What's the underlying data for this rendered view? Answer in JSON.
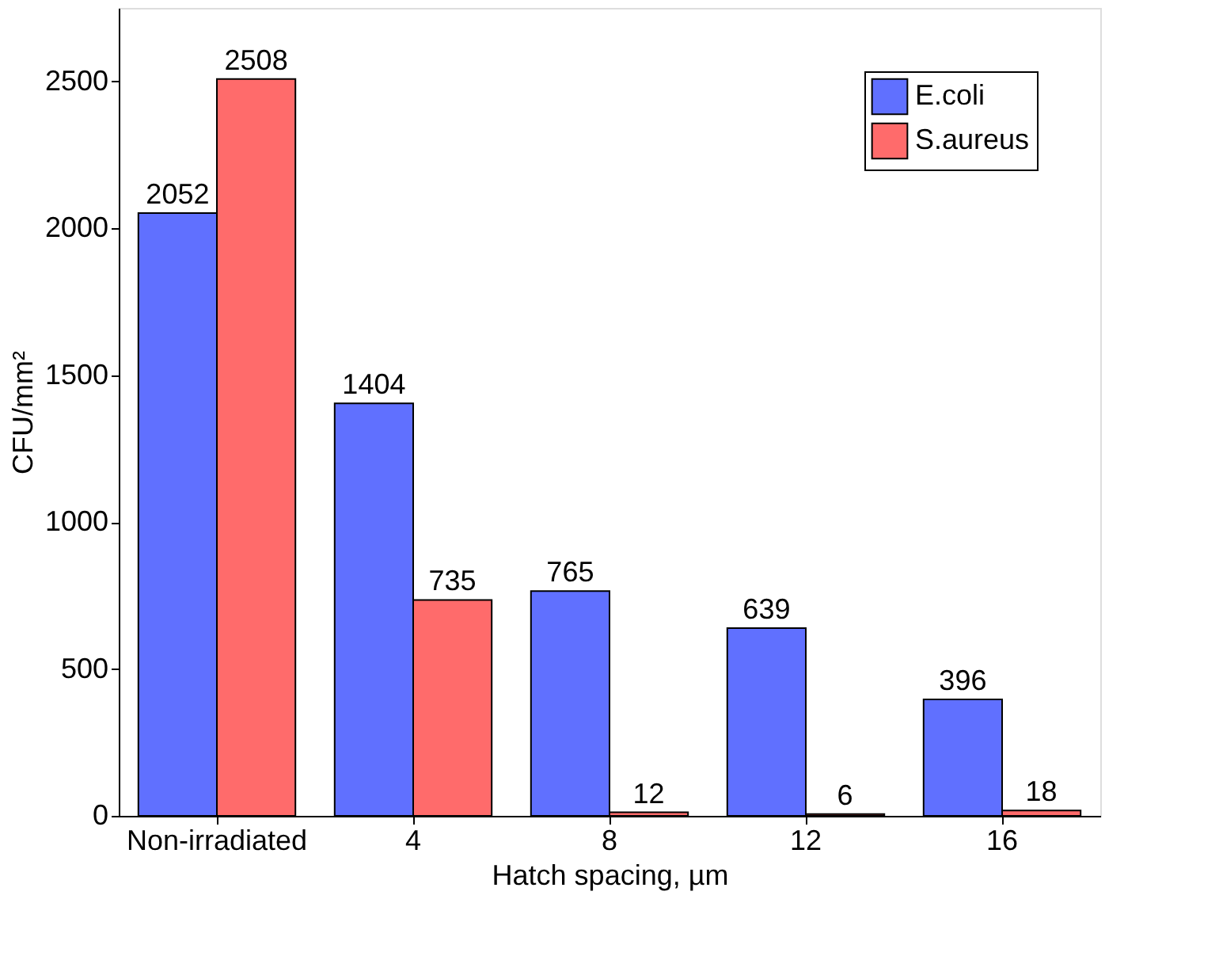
{
  "chart_data": {
    "type": "bar",
    "xlabel": "Hatch spacing, µm",
    "ylabel": "CFU/mm²",
    "categories": [
      "Non-irradiated",
      "4",
      "8",
      "12",
      "16"
    ],
    "series": [
      {
        "name": "E.coli",
        "color": "#6070ff",
        "values": [
          2052,
          1404,
          765,
          639,
          396
        ]
      },
      {
        "name": "S.aureus",
        "color": "#ff6b6b",
        "values": [
          2508,
          735,
          12,
          6,
          18
        ]
      }
    ],
    "ylim": [
      0,
      2750
    ],
    "yticks": [
      0,
      500,
      1000,
      1500,
      2000,
      2500
    ],
    "grid": false,
    "legend": "top right",
    "data_labels": true
  }
}
